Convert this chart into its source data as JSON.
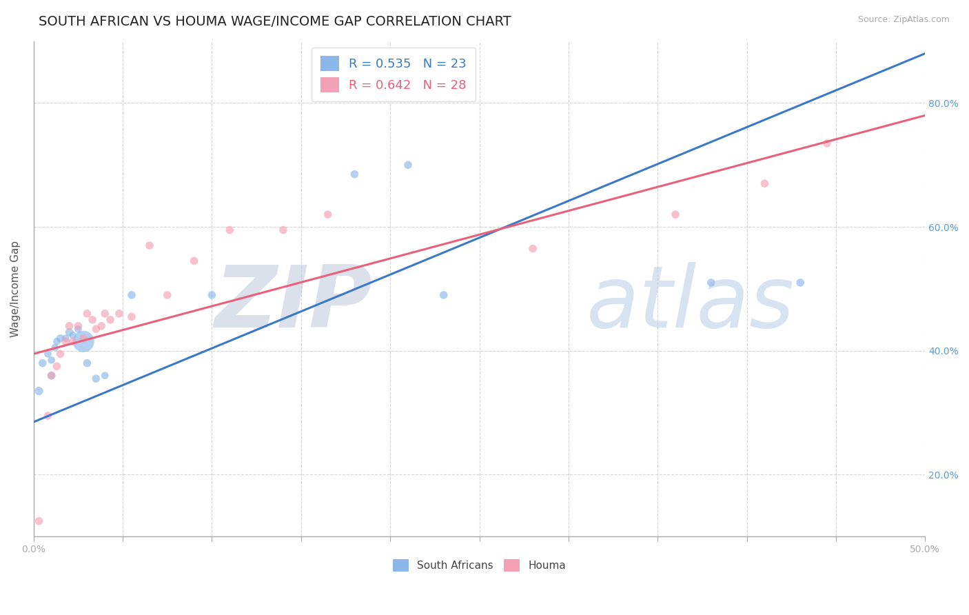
{
  "title": "SOUTH AFRICAN VS HOUMA WAGE/INCOME GAP CORRELATION CHART",
  "source_text": "Source: ZipAtlas.com",
  "ylabel": "Wage/Income Gap",
  "xlim": [
    0.0,
    0.5
  ],
  "ylim": [
    0.1,
    0.9
  ],
  "xticks": [
    0.0,
    0.05,
    0.1,
    0.15,
    0.2,
    0.25,
    0.3,
    0.35,
    0.4,
    0.45,
    0.5
  ],
  "yticks": [
    0.2,
    0.4,
    0.6,
    0.8
  ],
  "ytick_labels": [
    "20.0%",
    "40.0%",
    "60.0%",
    "80.0%"
  ],
  "blue_color": "#8bb8e8",
  "pink_color": "#f4a0b5",
  "blue_line_color": "#3a78c9",
  "pink_line_color": "#e8607a",
  "legend_R_blue": "R = 0.535",
  "legend_N_blue": "N = 23",
  "legend_R_pink": "R = 0.642",
  "legend_N_pink": "N = 28",
  "south_african_label": "South Africans",
  "houma_label": "Houma",
  "blue_scatter_x": [
    0.003,
    0.005,
    0.008,
    0.01,
    0.01,
    0.012,
    0.013,
    0.015,
    0.018,
    0.02,
    0.022,
    0.025,
    0.028,
    0.03,
    0.035,
    0.04,
    0.055,
    0.1,
    0.18,
    0.21,
    0.23,
    0.38,
    0.43
  ],
  "blue_scatter_y": [
    0.335,
    0.38,
    0.395,
    0.36,
    0.385,
    0.405,
    0.415,
    0.42,
    0.42,
    0.43,
    0.425,
    0.435,
    0.415,
    0.38,
    0.355,
    0.36,
    0.49,
    0.49,
    0.685,
    0.7,
    0.49,
    0.51,
    0.51
  ],
  "blue_scatter_sizes": [
    80,
    70,
    60,
    70,
    60,
    60,
    60,
    70,
    60,
    70,
    60,
    60,
    500,
    70,
    70,
    60,
    70,
    70,
    70,
    70,
    70,
    70,
    70
  ],
  "pink_scatter_x": [
    0.003,
    0.008,
    0.01,
    0.013,
    0.015,
    0.018,
    0.02,
    0.022,
    0.025,
    0.028,
    0.03,
    0.033,
    0.035,
    0.038,
    0.04,
    0.043,
    0.048,
    0.055,
    0.065,
    0.075,
    0.09,
    0.11,
    0.14,
    0.165,
    0.28,
    0.36,
    0.41,
    0.445
  ],
  "pink_scatter_y": [
    0.125,
    0.295,
    0.36,
    0.375,
    0.395,
    0.415,
    0.44,
    0.415,
    0.44,
    0.42,
    0.46,
    0.45,
    0.435,
    0.44,
    0.46,
    0.45,
    0.46,
    0.455,
    0.57,
    0.49,
    0.545,
    0.595,
    0.595,
    0.62,
    0.565,
    0.62,
    0.67,
    0.735
  ],
  "pink_scatter_sizes": [
    70,
    70,
    70,
    70,
    70,
    70,
    70,
    70,
    70,
    70,
    70,
    70,
    70,
    70,
    70,
    70,
    70,
    70,
    70,
    70,
    70,
    70,
    70,
    70,
    70,
    70,
    70,
    70
  ],
  "blue_line_x": [
    0.0,
    0.5
  ],
  "blue_line_y": [
    0.285,
    0.88
  ],
  "pink_line_x": [
    0.0,
    0.5
  ],
  "pink_line_y": [
    0.395,
    0.78
  ],
  "grid_color": "#cccccc",
  "background_color": "#ffffff",
  "title_fontsize": 14,
  "axis_label_fontsize": 11,
  "tick_fontsize": 10,
  "legend_fontsize": 13
}
